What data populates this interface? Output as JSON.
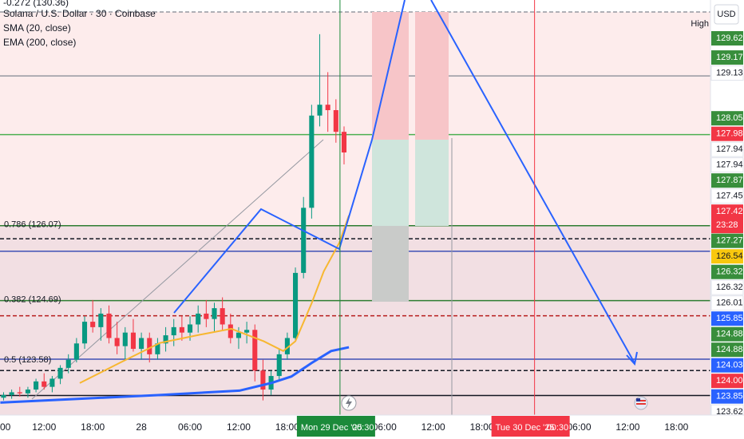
{
  "chart_data": {
    "type": "candlestick",
    "title": "Solana / U.S. Dollar · 30 · Coinbase",
    "top_note": "-0.272 (130.36)",
    "currency": "USD",
    "high_label": "High",
    "ylim": [
      122.58,
      130.23
    ],
    "xlim": [
      -17.44,
      70.2
    ],
    "up_color": "#089981",
    "down_color": "#f23645",
    "x": [
      -17,
      -16,
      -15,
      -14,
      -13,
      -12,
      -11,
      -10,
      -9,
      -8,
      -7,
      -6,
      -5,
      -4,
      -3,
      -2,
      -1,
      0,
      1,
      2,
      3,
      4,
      5,
      6,
      7,
      8,
      9,
      10,
      11,
      12,
      13,
      14,
      15,
      16,
      17,
      18,
      19,
      20,
      21,
      22,
      23,
      24,
      25
    ],
    "open": [
      122.9,
      122.95,
      123.0,
      122.98,
      123.05,
      123.2,
      123.1,
      123.25,
      123.45,
      123.6,
      123.9,
      124.3,
      124.2,
      124.45,
      124.0,
      123.85,
      124.1,
      123.8,
      124.0,
      123.7,
      123.9,
      124.05,
      124.2,
      124.1,
      124.25,
      124.45,
      124.35,
      124.55,
      124.25,
      124.0,
      124.1,
      124.15,
      123.4,
      123.05,
      123.3,
      123.7,
      124.0,
      125.2,
      126.4,
      128.1,
      128.3,
      128.2,
      127.8
    ],
    "high": [
      123.0,
      123.05,
      123.1,
      123.1,
      123.25,
      123.35,
      123.3,
      123.5,
      123.7,
      124.0,
      124.4,
      124.7,
      124.55,
      124.6,
      124.3,
      124.2,
      124.35,
      124.1,
      124.1,
      124.0,
      124.2,
      124.35,
      124.4,
      124.4,
      124.6,
      124.7,
      124.65,
      124.75,
      124.45,
      124.2,
      124.3,
      124.25,
      123.6,
      123.4,
      123.8,
      124.1,
      125.3,
      126.6,
      128.3,
      129.6,
      128.9,
      128.4,
      127.9
    ],
    "low": [
      122.85,
      122.88,
      122.92,
      122.9,
      123.0,
      123.05,
      123.0,
      123.15,
      123.35,
      123.55,
      123.8,
      124.1,
      123.95,
      123.9,
      123.7,
      123.6,
      123.75,
      123.6,
      123.55,
      123.6,
      123.75,
      123.85,
      123.95,
      123.95,
      124.1,
      124.2,
      124.1,
      124.15,
      123.9,
      123.8,
      123.9,
      123.2,
      122.85,
      122.95,
      123.2,
      123.6,
      123.95,
      125.1,
      126.2,
      127.9,
      127.8,
      127.6,
      127.2
    ],
    "close": [
      122.95,
      123.0,
      122.98,
      123.05,
      123.2,
      123.1,
      123.25,
      123.45,
      123.6,
      123.9,
      124.3,
      124.2,
      124.45,
      124.0,
      123.85,
      124.1,
      123.8,
      124.0,
      123.7,
      123.9,
      124.05,
      124.2,
      124.1,
      124.25,
      124.45,
      124.35,
      124.55,
      124.25,
      124.0,
      124.1,
      124.15,
      123.4,
      123.05,
      123.3,
      123.7,
      124.0,
      125.2,
      126.4,
      128.1,
      128.3,
      128.2,
      127.8,
      127.42
    ],
    "overlays": [
      {
        "name": "SMA (20, close)",
        "color": "#f7b731",
        "x": [
          -7.6,
          -2.7,
          2.3,
          7.2,
          11.1,
          15.1,
          17.5,
          19,
          21,
          22.5,
          24.4,
          25.6
        ],
        "values": [
          123.17,
          123.54,
          123.91,
          124.06,
          124.17,
          123.94,
          123.76,
          123.94,
          124.64,
          125.23,
          125.75,
          126.26
        ]
      },
      {
        "name": "EMA (200, close)",
        "color": "#2962ff",
        "x": [
          -17.4,
          -7.6,
          2.3,
          12.1,
          16,
          18.5,
          21,
          23.4,
          25.6
        ],
        "values": [
          122.81,
          122.88,
          122.95,
          123.03,
          123.17,
          123.29,
          123.54,
          123.76,
          123.83
        ]
      }
    ],
    "levels": [
      {
        "value": 130.01,
        "color": "#9598a1",
        "dash": true
      },
      {
        "value": 128.83,
        "color": "#9598a1",
        "dash": false
      },
      {
        "value": 127.75,
        "color": "#4caf50",
        "dash": false
      },
      {
        "value": 126.07,
        "color": "#2e7d32",
        "dash": false
      },
      {
        "value": 125.83,
        "color": "#131722",
        "dash": true
      },
      {
        "value": 125.6,
        "color": "#3f51b5",
        "dash": false
      },
      {
        "value": 124.69,
        "color": "#2e7d32",
        "dash": false
      },
      {
        "value": 124.41,
        "color": "#b71c1c",
        "dash": true
      },
      {
        "value": 123.61,
        "color": "#3f51b5",
        "dash": false
      },
      {
        "value": 123.4,
        "color": "#131722",
        "dash": true
      },
      {
        "value": 122.94,
        "color": "#131722",
        "dash": false
      }
    ],
    "fib_labels": [
      {
        "text": "0.786 (126.07)",
        "value": 126.07
      },
      {
        "text": "0.382 (124.69)",
        "value": 124.69
      },
      {
        "text": "0.5 (123.58)",
        "value": 123.58
      }
    ],
    "xticks": [
      {
        "value": -18,
        "label": "00"
      },
      {
        "value": -12,
        "label": "12:00"
      },
      {
        "value": -6,
        "label": "18:00"
      },
      {
        "value": 0,
        "label": "28"
      },
      {
        "value": 6,
        "label": "06:00"
      },
      {
        "value": 12,
        "label": "12:00"
      },
      {
        "value": 18,
        "label": "18:00"
      },
      {
        "value": 30,
        "label": "06:00"
      },
      {
        "value": 36,
        "label": "12:00"
      },
      {
        "value": 42,
        "label": "18:00"
      },
      {
        "value": 54,
        "label": "06:00"
      },
      {
        "value": 60,
        "label": "12:00"
      },
      {
        "value": 66,
        "label": "18:00"
      }
    ],
    "x_markers": [
      {
        "value": 24.5,
        "label": "Mon 29 Dec '25",
        "time": "00:30",
        "color": "#1b8a3a"
      },
      {
        "value": 48.5,
        "label": "Tue 30 Dec '25",
        "time": "00:30",
        "color": "#f23645"
      }
    ],
    "price_tags": [
      {
        "value": 129.62,
        "color": "#388e3c",
        "ink": "#ffffff"
      },
      {
        "value": 129.17,
        "color": "#388e3c",
        "ink": "#ffffff"
      },
      {
        "value": 129.13,
        "color": "#ffffff",
        "ink": "#131722"
      },
      {
        "value": 128.05,
        "color": "#388e3c",
        "ink": "#ffffff"
      },
      {
        "value": 127.98,
        "color": "#f23645",
        "ink": "#ffffff"
      },
      {
        "value": 127.94,
        "color": "#ffffff",
        "ink": "#131722"
      },
      {
        "value": 127.94,
        "color": "#ffffff",
        "ink": "#131722"
      },
      {
        "value": 127.87,
        "color": "#388e3c",
        "ink": "#ffffff"
      },
      {
        "value": 127.45,
        "color": "#ffffff",
        "ink": "#131722"
      },
      {
        "value": 127.42,
        "color": "#f23645",
        "ink": "#ffffff",
        "sub": "23:28"
      },
      {
        "value": 127.27,
        "color": "#388e3c",
        "ink": "#ffffff"
      },
      {
        "value": 126.54,
        "color": "#f9c80e",
        "ink": "#131722"
      },
      {
        "value": 126.32,
        "color": "#388e3c",
        "ink": "#ffffff"
      },
      {
        "value": 126.32,
        "color": "#ffffff",
        "ink": "#131722"
      },
      {
        "value": 126.01,
        "color": "#ffffff",
        "ink": "#131722"
      },
      {
        "value": 125.85,
        "color": "#2962ff",
        "ink": "#ffffff"
      },
      {
        "value": 124.88,
        "color": "#388e3c",
        "ink": "#ffffff"
      },
      {
        "value": 124.88,
        "color": "#388e3c",
        "ink": "#ffffff"
      },
      {
        "value": 124.03,
        "color": "#2962ff",
        "ink": "#ffffff"
      },
      {
        "value": 124,
        "label": "124.00",
        "color": "#f23645",
        "ink": "#ffffff"
      },
      {
        "value": 123.85,
        "color": "#2962ff",
        "ink": "#ffffff"
      },
      {
        "value": 123.62,
        "color": "#ffffff",
        "ink": "#131722"
      },
      {
        "value": 123.62,
        "color": "#2962ff",
        "ink": "#ffffff"
      }
    ]
  }
}
